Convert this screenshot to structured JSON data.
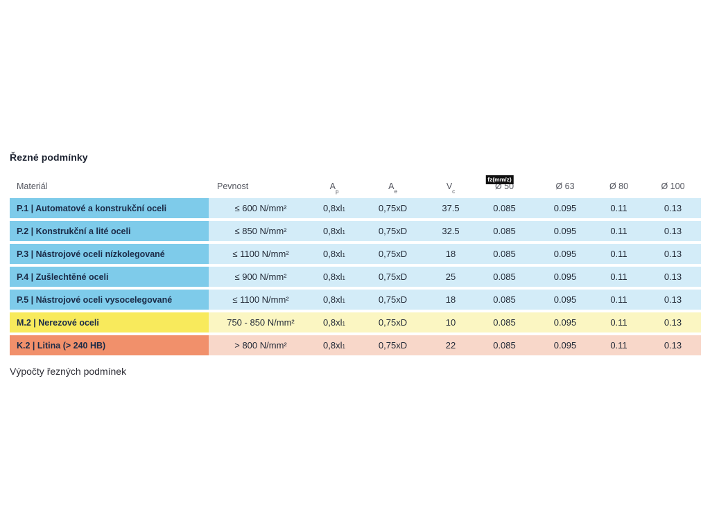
{
  "page": {
    "title": "Řezné podmínky",
    "subheading": "Výpočty řezných podmínek"
  },
  "table": {
    "headers": {
      "material": "Materiál",
      "pevnost": "Pevnost",
      "ap_base": "A",
      "ap_sub": "p",
      "ae_base": "A",
      "ae_sub": "e",
      "vc_base": "V",
      "vc_sub": "c",
      "fz_badge": "fz(mm/z)",
      "d50": "Ø 50",
      "d63": "Ø 63",
      "d80": "Ø 80",
      "d100": "Ø 100"
    },
    "rows": [
      {
        "material": "P.1 | Automatové a konstrukční oceli",
        "pevnost": "≤ 600 N/mm²",
        "ap": "0,8xl",
        "ap_sub": "1",
        "ae": "0,75xD",
        "vc": "37.5",
        "d50": "0.085",
        "d63": "0.095",
        "d80": "0.11",
        "d100": "0.13"
      },
      {
        "material": "P.2 | Konstrukční a lité oceli",
        "pevnost": "≤ 850 N/mm²",
        "ap": "0,8xl",
        "ap_sub": "1",
        "ae": "0,75xD",
        "vc": "32.5",
        "d50": "0.085",
        "d63": "0.095",
        "d80": "0.11",
        "d100": "0.13"
      },
      {
        "material": "P.3 | Nástrojové oceli nízkolegované",
        "pevnost": "≤ 1100 N/mm²",
        "ap": "0,8xl",
        "ap_sub": "1",
        "ae": "0,75xD",
        "vc": "18",
        "d50": "0.085",
        "d63": "0.095",
        "d80": "0.11",
        "d100": "0.13"
      },
      {
        "material": "P.4 | Zušlechtěné oceli",
        "pevnost": "≤ 900 N/mm²",
        "ap": "0,8xl",
        "ap_sub": "1",
        "ae": "0,75xD",
        "vc": "25",
        "d50": "0.085",
        "d63": "0.095",
        "d80": "0.11",
        "d100": "0.13"
      },
      {
        "material": "P.5 | Nástrojové oceli vysocelegované",
        "pevnost": "≤ 1100 N/mm²",
        "ap": "0,8xl",
        "ap_sub": "1",
        "ae": "0,75xD",
        "vc": "18",
        "d50": "0.085",
        "d63": "0.095",
        "d80": "0.11",
        "d100": "0.13"
      },
      {
        "material": "M.2 | Nerezové oceli",
        "pevnost": "750 - 850 N/mm²",
        "ap": "0,8xl",
        "ap_sub": "1",
        "ae": "0,75xD",
        "vc": "10",
        "d50": "0.085",
        "d63": "0.095",
        "d80": "0.11",
        "d100": "0.13"
      },
      {
        "material": "K.2 | Litina (> 240 HB)",
        "pevnost": "> 800 N/mm²",
        "ap": "0,8xl",
        "ap_sub": "1",
        "ae": "0,75xD",
        "vc": "22",
        "d50": "0.085",
        "d63": "0.095",
        "d80": "0.11",
        "d100": "0.13"
      }
    ],
    "colors": {
      "steel_row_label_bg": "#7ecbea",
      "steel_row_value_bg": "#d3ecf8",
      "stainless_row_label_bg": "#f8ea5c",
      "stainless_row_value_bg": "#fbf6c2",
      "castiron_row_label_bg": "#f1906b",
      "castiron_row_value_bg": "#f8d7c9",
      "fz_badge_bg": "#111111",
      "fz_badge_text": "#ffffff"
    }
  }
}
